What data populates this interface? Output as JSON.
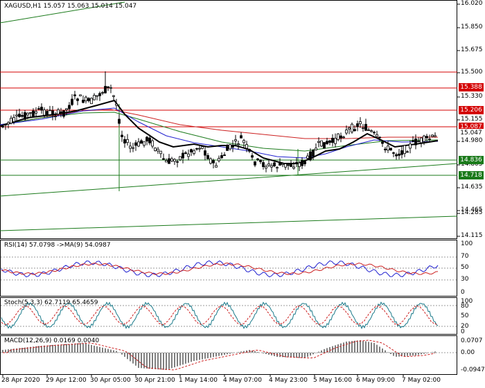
{
  "main": {
    "symbol": "XAGUSD,H1",
    "ohlc": "15.057 15.063 15.014 15.047",
    "price_ticks": [
      "16.020",
      "15.850",
      "15.675",
      "15.500",
      "15.330",
      "15.155",
      "14.980",
      "14.805",
      "14.635",
      "14.465",
      "14.285",
      "14.115"
    ],
    "tags": [
      {
        "value": "15.388",
        "color": "#d40000"
      },
      {
        "value": "15.206",
        "color": "#d40000"
      },
      {
        "value": "15.087",
        "color": "#d40000"
      },
      {
        "value": "15.047",
        "color": "#ffffff"
      },
      {
        "value": "14.836",
        "color": "#1a7a1a"
      },
      {
        "value": "14.718",
        "color": "#1a7a1a"
      }
    ]
  },
  "rsi": {
    "title": "RSI(14) 57.0798  ->MA(9) 54.0987",
    "ticks": [
      "100",
      "70",
      "50",
      "30",
      "0"
    ]
  },
  "stoch": {
    "title": "Stoch(5,3,3) 62.7119 65.4659",
    "ticks": [
      "100",
      "80",
      "50",
      "20",
      "0"
    ]
  },
  "macd": {
    "title": "MACD(12,26,9) 0.0169 0.0040",
    "ticks": [
      "0.0707",
      "0.00",
      "-0.0947"
    ]
  },
  "time_labels": [
    "28 Apr 2020",
    "29 Apr 12:00",
    "30 Apr 05:00",
    "30 Apr 21:00",
    "1 May 14:00",
    "4 May 07:00",
    "4 May 23:00",
    "5 May 16:00",
    "6 May 09:00",
    "7 May 02:00"
  ],
  "colors": {
    "bull": "#000000",
    "bear": "#000000",
    "resistance": "#d40000",
    "support": "#1a7a1a",
    "ma_blue": "#1f1fcf",
    "ma_red": "#cc1f1f",
    "rsi_line": "#1f1fcf",
    "signal": "#cc1f1f"
  }
}
